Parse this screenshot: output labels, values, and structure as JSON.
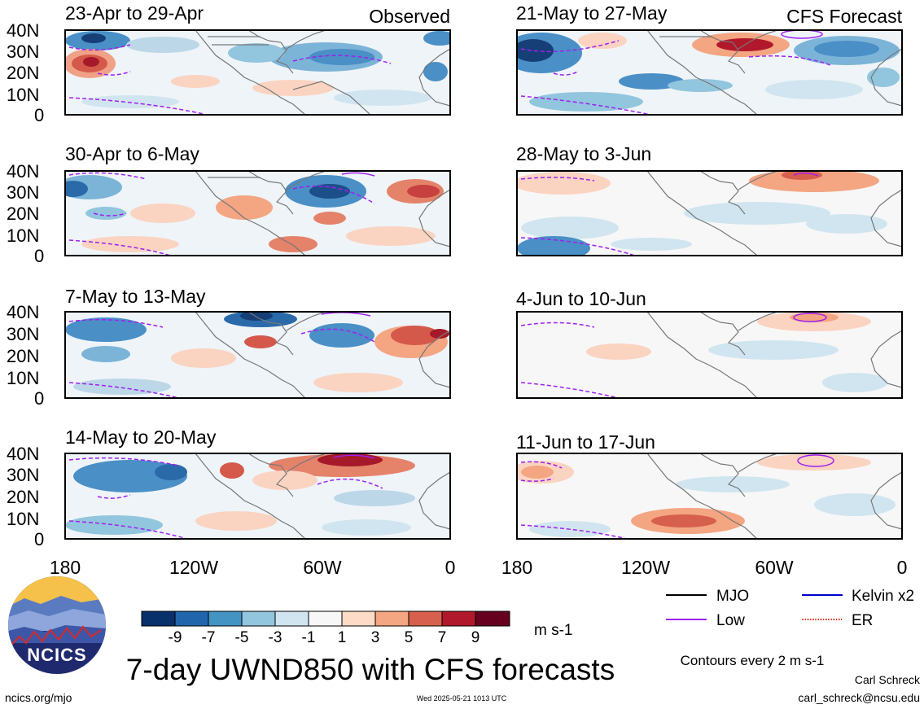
{
  "figure": {
    "title": "7-day UWND850 with CFS forecasts",
    "observed_label": "Observed",
    "forecast_label": "CFS Forecast",
    "units": "m s-1",
    "contour_note": "Contours every 2 m s-1",
    "footer_left": "ncics.org/mjo",
    "footer_center": "Wed 2025-05-21 1013 UTC",
    "author": "Carl Schreck",
    "email": "carl_schreck@ncsu.edu",
    "logo_text": "NCICS"
  },
  "panels": {
    "observed": [
      {
        "period": "23-Apr to 29-Apr"
      },
      {
        "period": "30-Apr to 6-May"
      },
      {
        "period": "7-May to 13-May"
      },
      {
        "period": "14-May to 20-May"
      }
    ],
    "forecast": [
      {
        "period": "21-May to 27-May"
      },
      {
        "period": "28-May to 3-Jun"
      },
      {
        "period": "4-Jun to 10-Jun"
      },
      {
        "period": "11-Jun to 17-Jun"
      }
    ]
  },
  "axes": {
    "y_ticks": [
      "40N",
      "30N",
      "20N",
      "10N",
      "0"
    ],
    "x_ticks": [
      "180",
      "120W",
      "60W",
      "0"
    ]
  },
  "colorbar": {
    "ticks": [
      "-9",
      "-7",
      "-5",
      "-3",
      "-1",
      "1",
      "3",
      "5",
      "7",
      "9"
    ],
    "colors": [
      "#08306b",
      "#2166ac",
      "#4393c3",
      "#92c5de",
      "#d1e5f0",
      "#f7f7f7",
      "#fddbc7",
      "#f4a582",
      "#d6604d",
      "#b2182b",
      "#67001f"
    ]
  },
  "legend": [
    {
      "label": "MJO",
      "color": "#000000"
    },
    {
      "label": "Kelvin x2",
      "color": "#0000cc"
    },
    {
      "label": "Low",
      "color": "#a020f0"
    },
    {
      "label": "ER",
      "color": "#e03020"
    }
  ]
}
